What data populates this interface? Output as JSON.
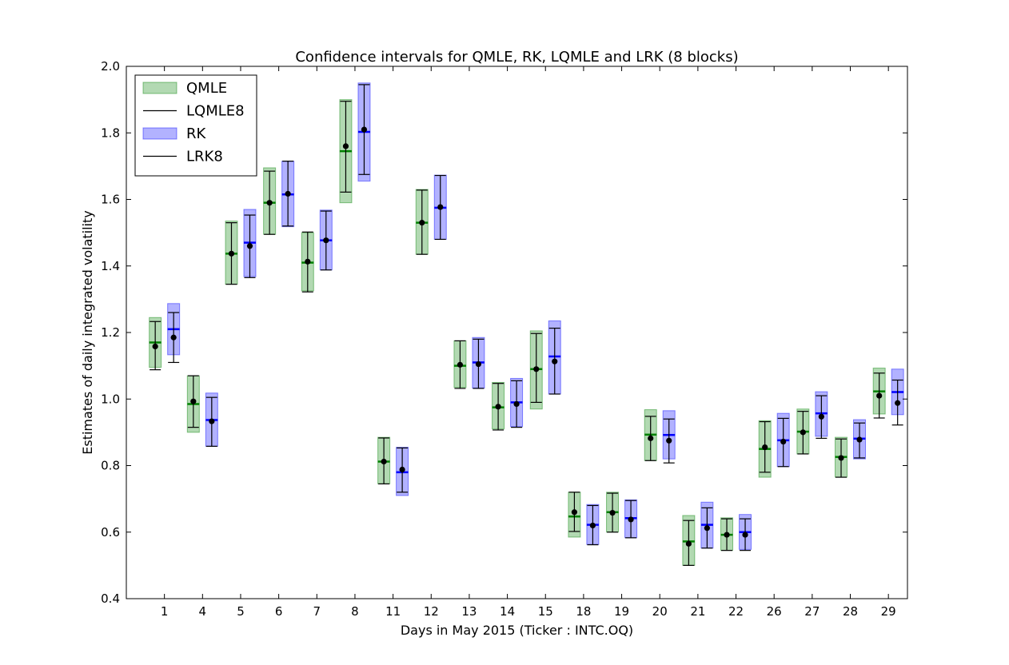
{
  "chart_data": {
    "type": "errorbar-boxes",
    "title": "Confidence intervals for QMLE, RK, LQMLE and LRK (8 blocks)",
    "xlabel": "Days in May 2015 (Ticker : INTC.OQ)",
    "ylabel": "Estimates of daily integrated volatility",
    "ylim": [
      0.4,
      2.0
    ],
    "yticks": [
      "0.4",
      "0.6",
      "0.8",
      "1.0",
      "1.2",
      "1.4",
      "1.6",
      "1.8",
      "2.0"
    ],
    "categories": [
      "1",
      "4",
      "5",
      "6",
      "7",
      "8",
      "11",
      "12",
      "13",
      "14",
      "15",
      "18",
      "19",
      "20",
      "21",
      "22",
      "26",
      "27",
      "28",
      "29"
    ],
    "legend": {
      "position": "top-left",
      "entries": [
        {
          "label": "QMLE",
          "kind": "box",
          "color": "#008000"
        },
        {
          "label": "LQMLE8",
          "kind": "line",
          "color": "#000000"
        },
        {
          "label": "RK",
          "kind": "box",
          "color": "#0000ff"
        },
        {
          "label": "LRK8",
          "kind": "line",
          "color": "#000000"
        }
      ]
    },
    "colors": {
      "qmle_fill": "#008000",
      "qmle_line": "#008000",
      "rk_fill": "#0000ff",
      "rk_line": "#0000ff",
      "local": "#000000"
    },
    "series": [
      {
        "name": "QMLE",
        "estimate": [
          1.17,
          0.985,
          1.437,
          1.59,
          1.41,
          1.745,
          0.812,
          1.53,
          1.1,
          0.975,
          1.09,
          0.647,
          0.66,
          0.893,
          0.572,
          0.592,
          0.85,
          0.902,
          0.826,
          1.023
        ],
        "lower": [
          1.095,
          0.9,
          1.345,
          1.495,
          1.325,
          1.59,
          0.745,
          1.435,
          1.035,
          0.91,
          0.97,
          0.585,
          0.6,
          0.815,
          0.5,
          0.545,
          0.765,
          0.835,
          0.765,
          0.955
        ],
        "upper": [
          1.245,
          1.07,
          1.535,
          1.695,
          1.5,
          1.9,
          0.885,
          1.63,
          1.175,
          1.05,
          1.205,
          0.72,
          0.72,
          0.968,
          0.65,
          0.643,
          0.935,
          0.97,
          0.885,
          1.093
        ]
      },
      {
        "name": "LQMLE8",
        "estimate": [
          1.158,
          0.993,
          1.437,
          1.59,
          1.413,
          1.76,
          0.812,
          1.53,
          1.103,
          0.977,
          1.09,
          0.66,
          0.658,
          0.882,
          0.565,
          0.592,
          0.855,
          0.9,
          0.823,
          1.01
        ],
        "lower": [
          1.088,
          0.915,
          1.345,
          1.495,
          1.322,
          1.622,
          0.745,
          1.435,
          1.032,
          0.907,
          0.99,
          0.602,
          0.6,
          0.815,
          0.5,
          0.545,
          0.78,
          0.835,
          0.765,
          0.943
        ],
        "upper": [
          1.233,
          1.07,
          1.53,
          1.685,
          1.502,
          1.895,
          0.883,
          1.628,
          1.175,
          1.047,
          1.197,
          0.72,
          0.717,
          0.948,
          0.635,
          0.64,
          0.932,
          0.963,
          0.88,
          1.078
        ]
      },
      {
        "name": "RK",
        "estimate": [
          1.21,
          0.937,
          1.47,
          1.615,
          1.477,
          1.803,
          0.78,
          1.575,
          1.11,
          0.99,
          1.128,
          0.622,
          0.642,
          0.892,
          0.622,
          0.6,
          0.876,
          0.957,
          0.881,
          1.021
        ],
        "lower": [
          1.133,
          0.858,
          1.368,
          1.518,
          1.388,
          1.655,
          0.71,
          1.48,
          1.033,
          0.917,
          1.015,
          0.563,
          0.583,
          0.82,
          0.552,
          0.548,
          0.797,
          0.888,
          0.82,
          0.953
        ],
        "upper": [
          1.287,
          1.018,
          1.57,
          1.715,
          1.568,
          1.95,
          0.855,
          1.673,
          1.185,
          1.062,
          1.235,
          0.683,
          0.697,
          0.965,
          0.69,
          0.653,
          0.957,
          1.022,
          0.938,
          1.09
        ]
      },
      {
        "name": "LRK8",
        "estimate": [
          1.185,
          0.933,
          1.46,
          1.617,
          1.477,
          1.81,
          0.788,
          1.577,
          1.105,
          0.985,
          1.113,
          0.62,
          0.638,
          0.875,
          0.612,
          0.592,
          0.872,
          0.947,
          0.878,
          0.988
        ],
        "lower": [
          1.11,
          0.858,
          1.365,
          1.52,
          1.388,
          1.675,
          0.72,
          1.48,
          1.032,
          0.915,
          1.015,
          0.562,
          0.583,
          0.808,
          0.552,
          0.545,
          0.797,
          0.882,
          0.823,
          0.922
        ],
        "upper": [
          1.26,
          1.005,
          1.553,
          1.715,
          1.565,
          1.945,
          0.853,
          1.672,
          1.18,
          1.055,
          1.213,
          0.68,
          0.695,
          0.94,
          0.673,
          0.64,
          0.942,
          1.01,
          0.928,
          1.057
        ]
      }
    ]
  }
}
